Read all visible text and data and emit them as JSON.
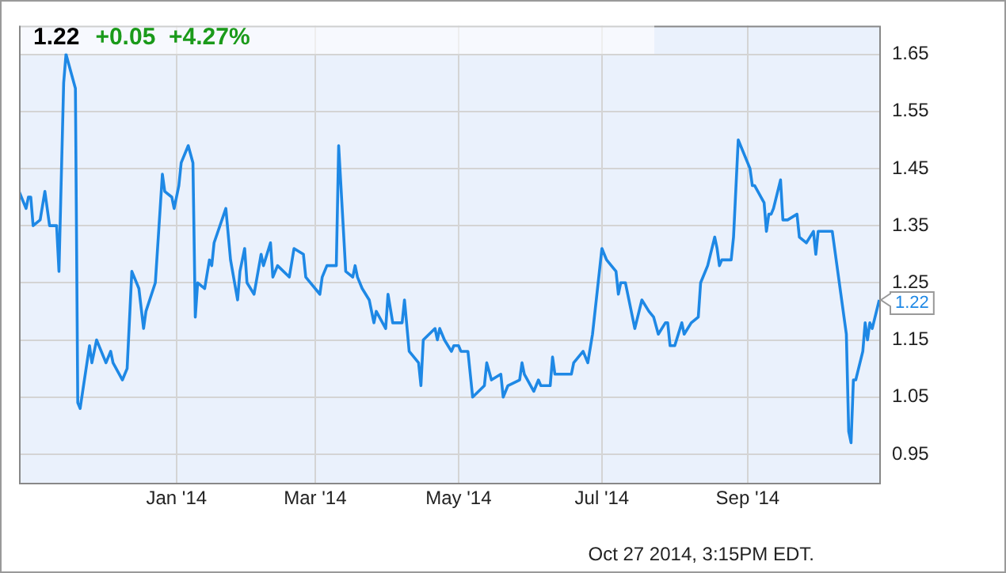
{
  "chart_data": {
    "type": "line",
    "title": "1.22",
    "subtitle": "+0.05  +4.27%",
    "x": [
      "2013-10-26",
      "2013-10-29",
      "2013-10-30",
      "2013-10-31",
      "2013-11-01",
      "2013-11-04",
      "2013-11-06",
      "2013-11-08",
      "2013-11-11",
      "2013-11-12",
      "2013-11-14",
      "2013-11-15",
      "2013-11-19",
      "2013-11-20",
      "2013-11-21",
      "2013-11-25",
      "2013-11-26",
      "2013-11-28",
      "2013-12-02",
      "2013-12-04",
      "2013-12-05",
      "2013-12-09",
      "2013-12-11",
      "2013-12-13",
      "2013-12-16",
      "2013-12-18",
      "2013-12-19",
      "2013-12-23",
      "2013-12-26",
      "2013-12-27",
      "2013-12-30",
      "2013-12-31",
      "2014-01-02",
      "2014-01-03",
      "2014-01-06",
      "2014-01-08",
      "2014-01-09",
      "2014-01-10",
      "2014-01-13",
      "2014-01-15",
      "2014-01-16",
      "2014-01-17",
      "2014-01-22",
      "2014-01-24",
      "2014-01-27",
      "2014-01-28",
      "2014-01-30",
      "2014-01-31",
      "2014-02-03",
      "2014-02-06",
      "2014-02-07",
      "2014-02-10",
      "2014-02-11",
      "2014-02-13",
      "2014-02-18",
      "2014-02-20",
      "2014-02-24",
      "2014-02-25",
      "2014-02-27",
      "2014-03-03",
      "2014-03-04",
      "2014-03-06",
      "2014-03-10",
      "2014-03-11",
      "2014-03-14",
      "2014-03-17",
      "2014-03-18",
      "2014-03-19",
      "2014-03-21",
      "2014-03-24",
      "2014-03-26",
      "2014-03-27",
      "2014-03-31",
      "2014-04-01",
      "2014-04-03",
      "2014-04-07",
      "2014-04-08",
      "2014-04-10",
      "2014-04-14",
      "2014-04-15",
      "2014-04-16",
      "2014-04-21",
      "2014-04-22",
      "2014-04-23",
      "2014-04-25",
      "2014-04-28",
      "2014-04-29",
      "2014-05-01",
      "2014-05-02",
      "2014-05-05",
      "2014-05-07",
      "2014-05-12",
      "2014-05-13",
      "2014-05-15",
      "2014-05-19",
      "2014-05-20",
      "2014-05-22",
      "2014-05-27",
      "2014-05-28",
      "2014-05-29",
      "2014-06-02",
      "2014-06-04",
      "2014-06-05",
      "2014-06-09",
      "2014-06-10",
      "2014-06-11",
      "2014-06-18",
      "2014-06-19",
      "2014-06-23",
      "2014-06-25",
      "2014-06-27",
      "2014-07-01",
      "2014-07-03",
      "2014-07-07",
      "2014-07-08",
      "2014-07-09",
      "2014-07-11",
      "2014-07-15",
      "2014-07-18",
      "2014-07-21",
      "2014-07-23",
      "2014-07-25",
      "2014-07-28",
      "2014-07-29",
      "2014-07-30",
      "2014-08-01",
      "2014-08-04",
      "2014-08-05",
      "2014-08-08",
      "2014-08-11",
      "2014-08-12",
      "2014-08-15",
      "2014-08-18",
      "2014-08-19",
      "2014-08-20",
      "2014-08-21",
      "2014-08-25",
      "2014-08-26",
      "2014-08-28",
      "2014-09-02",
      "2014-09-03",
      "2014-09-04",
      "2014-09-08",
      "2014-09-09",
      "2014-09-10",
      "2014-09-11",
      "2014-09-12",
      "2014-09-15",
      "2014-09-16",
      "2014-09-18",
      "2014-09-22",
      "2014-09-23",
      "2014-09-26",
      "2014-09-29",
      "2014-09-30",
      "2014-10-01",
      "2014-10-07",
      "2014-10-13",
      "2014-10-14",
      "2014-10-15",
      "2014-10-16",
      "2014-10-17",
      "2014-10-20",
      "2014-10-21",
      "2014-10-22",
      "2014-10-23",
      "2014-10-24",
      "2014-10-27"
    ],
    "series": [
      {
        "color": "#1e88e5",
        "values": [
          1.41,
          1.38,
          1.4,
          1.4,
          1.35,
          1.36,
          1.41,
          1.35,
          1.35,
          1.27,
          1.6,
          1.65,
          1.59,
          1.04,
          1.03,
          1.14,
          1.11,
          1.15,
          1.11,
          1.13,
          1.11,
          1.08,
          1.1,
          1.27,
          1.24,
          1.17,
          1.2,
          1.25,
          1.44,
          1.41,
          1.4,
          1.38,
          1.42,
          1.46,
          1.49,
          1.46,
          1.19,
          1.25,
          1.24,
          1.29,
          1.28,
          1.32,
          1.38,
          1.29,
          1.22,
          1.27,
          1.31,
          1.25,
          1.23,
          1.3,
          1.28,
          1.32,
          1.26,
          1.28,
          1.26,
          1.31,
          1.3,
          1.26,
          1.25,
          1.23,
          1.26,
          1.28,
          1.28,
          1.49,
          1.27,
          1.26,
          1.28,
          1.26,
          1.24,
          1.22,
          1.18,
          1.2,
          1.17,
          1.23,
          1.18,
          1.18,
          1.22,
          1.13,
          1.11,
          1.07,
          1.15,
          1.17,
          1.15,
          1.17,
          1.15,
          1.13,
          1.14,
          1.14,
          1.13,
          1.13,
          1.05,
          1.07,
          1.11,
          1.08,
          1.09,
          1.05,
          1.07,
          1.08,
          1.11,
          1.09,
          1.06,
          1.08,
          1.07,
          1.07,
          1.12,
          1.09,
          1.09,
          1.11,
          1.13,
          1.11,
          1.16,
          1.31,
          1.29,
          1.27,
          1.23,
          1.25,
          1.25,
          1.17,
          1.22,
          1.2,
          1.19,
          1.16,
          1.18,
          1.18,
          1.14,
          1.14,
          1.18,
          1.16,
          1.18,
          1.19,
          1.25,
          1.28,
          1.33,
          1.31,
          1.28,
          1.29,
          1.29,
          1.33,
          1.5,
          1.45,
          1.42,
          1.42,
          1.39,
          1.34,
          1.37,
          1.37,
          1.38,
          1.43,
          1.36,
          1.36,
          1.37,
          1.33,
          1.32,
          1.34,
          1.3,
          1.34,
          1.34,
          1.16,
          0.99,
          0.97,
          1.08,
          1.08,
          1.13,
          1.18,
          1.15,
          1.18,
          1.17,
          1.22
        ]
      }
    ],
    "xlim": [
      "2013-10-26",
      "2014-10-27"
    ],
    "xticks": [
      {
        "value": "2014-01-01",
        "label": "Jan '14"
      },
      {
        "value": "2014-03-01",
        "label": "Mar '14"
      },
      {
        "value": "2014-05-01",
        "label": "May '14"
      },
      {
        "value": "2014-07-01",
        "label": "Jul '14"
      },
      {
        "value": "2014-09-01",
        "label": "Sep '14"
      }
    ],
    "ylim": [
      0.9,
      1.7
    ],
    "yticks": [
      {
        "value": 0.95,
        "label": "0.95"
      },
      {
        "value": 1.05,
        "label": "1.05"
      },
      {
        "value": 1.15,
        "label": "1.15"
      },
      {
        "value": 1.25,
        "label": "1.25"
      },
      {
        "value": 1.35,
        "label": "1.35"
      },
      {
        "value": 1.45,
        "label": "1.45"
      },
      {
        "value": 1.55,
        "label": "1.55"
      },
      {
        "value": 1.65,
        "label": "1.65"
      }
    ],
    "grid": true,
    "legend": false,
    "marker": "none",
    "line_style": "solid",
    "annotations": [
      {
        "text": "1.22",
        "x": "2014-10-27",
        "y": 1.22
      },
      "Oct 27 2014, 3:15PM EDT."
    ]
  }
}
